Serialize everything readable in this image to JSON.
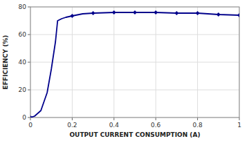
{
  "chart_data": {
    "type": "line",
    "x": [
      0,
      0.02,
      0.05,
      0.08,
      0.1,
      0.12,
      0.13,
      0.15,
      0.17,
      0.2,
      0.25,
      0.3,
      0.4,
      0.5,
      0.6,
      0.7,
      0.8,
      0.9,
      1.0
    ],
    "series": [
      {
        "color": "#00008B",
        "values": [
          0,
          1,
          5,
          18,
          35,
          55,
          70,
          71.5,
          72.5,
          73.5,
          75,
          75.5,
          76,
          76,
          76,
          75.5,
          75.5,
          74.5,
          74
        ]
      },
      {
        "type": "scatter",
        "marker": "diamond",
        "color": "#00008B",
        "values": [
          0,
          null,
          null,
          null,
          null,
          null,
          null,
          null,
          null,
          73.5,
          null,
          75.5,
          76,
          76,
          76,
          75.5,
          75.5,
          74.5,
          74
        ]
      }
    ],
    "xlim": [
      0,
      1
    ],
    "ylim": [
      0,
      80
    ],
    "xticks": [
      0,
      0.2,
      0.4,
      0.6,
      0.8,
      1
    ],
    "yticks": [
      0,
      20,
      40,
      60,
      80
    ],
    "xlabel": "OUTPUT CURRENT CONSUMPTION (A)",
    "ylabel": "EFFICIENCY (%)",
    "grid": true
  }
}
